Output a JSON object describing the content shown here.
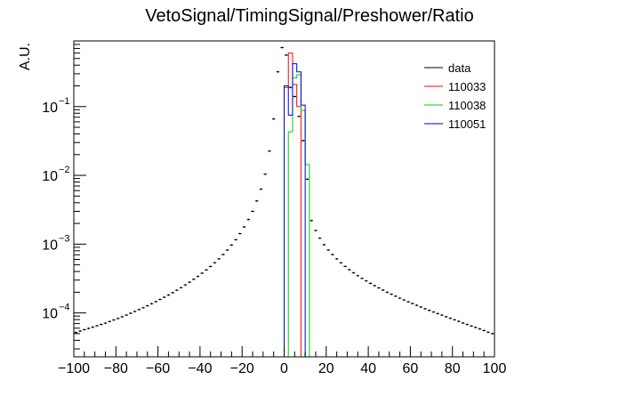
{
  "chart_data": {
    "type": "histogram",
    "title": "VetoSignal/TimingSignal/Preshower/Ratio",
    "xlabel": "",
    "ylabel": "A.U.",
    "xlim": [
      -100,
      100
    ],
    "ylim": [
      2.3e-05,
      0.9
    ],
    "yscale": "log",
    "bin_width": 2,
    "x_ticks": [
      -100,
      -80,
      -60,
      -40,
      -20,
      0,
      20,
      40,
      60,
      80,
      100
    ],
    "x_tick_labels": [
      "−100",
      "−80",
      "−60",
      "−40",
      "−20",
      "0",
      "20",
      "40",
      "60",
      "80",
      "100"
    ],
    "y_ticks": [
      0.0001,
      0.001,
      0.01,
      0.1
    ],
    "y_tick_labels": [
      {
        "base": "10",
        "exp": "−4"
      },
      {
        "base": "10",
        "exp": "−3"
      },
      {
        "base": "10",
        "exp": "−2"
      },
      {
        "base": "10",
        "exp": "−1"
      }
    ],
    "grid": false,
    "legend_position": "top-right",
    "series": [
      {
        "name": "data",
        "style": "markers-with-error",
        "color": "#000000",
        "bin_centers": [
          -99,
          -97,
          -95,
          -93,
          -91,
          -89,
          -87,
          -85,
          -83,
          -81,
          -79,
          -77,
          -75,
          -73,
          -71,
          -69,
          -67,
          -65,
          -63,
          -61,
          -59,
          -57,
          -55,
          -53,
          -51,
          -49,
          -47,
          -45,
          -43,
          -41,
          -39,
          -37,
          -35,
          -33,
          -31,
          -29,
          -27,
          -25,
          -23,
          -21,
          -19,
          -17,
          -15,
          -13,
          -11,
          -9,
          -7,
          -5,
          -3,
          -1,
          1,
          3,
          5,
          7,
          9,
          11,
          13,
          15,
          17,
          19,
          21,
          23,
          25,
          27,
          29,
          31,
          33,
          35,
          37,
          39,
          41,
          43,
          45,
          47,
          49,
          51,
          53,
          55,
          57,
          59,
          61,
          63,
          65,
          67,
          69,
          71,
          73,
          75,
          77,
          79,
          81,
          83,
          85,
          87,
          89,
          91,
          93,
          95,
          97,
          99
        ],
        "values": [
          5.2e-05,
          5.45e-05,
          5.7e-05,
          5.95e-05,
          6.2e-05,
          6.5e-05,
          6.8e-05,
          7.1e-05,
          7.5e-05,
          7.9e-05,
          8.3e-05,
          8.8e-05,
          9.3e-05,
          9.9e-05,
          0.000105,
          0.000112,
          0.000119,
          0.000127,
          0.000136,
          0.000146,
          0.000157,
          0.000169,
          0.000182,
          0.000197,
          0.000214,
          0.000233,
          0.000255,
          0.00028,
          0.000308,
          0.00034,
          0.000378,
          0.000422,
          0.000474,
          0.000536,
          0.000612,
          0.000705,
          0.00082,
          0.00097,
          0.00116,
          0.00142,
          0.00178,
          0.00228,
          0.003,
          0.00425,
          0.0063,
          0.0104,
          0.0225,
          0.066,
          0.32,
          0.72,
          0.56,
          0.19,
          0.14,
          0.072,
          0.032,
          0.0088,
          0.0022,
          0.00158,
          0.00122,
          0.00098,
          0.00082,
          0.000705,
          0.00061,
          0.000535,
          0.000475,
          0.000425,
          0.000383,
          0.000348,
          0.000318,
          0.000292,
          0.000269,
          0.000249,
          0.000231,
          0.000215,
          0.0002,
          0.000187,
          0.000175,
          0.000164,
          0.000154,
          0.000145,
          0.000137,
          0.000129,
          0.000122,
          0.000115,
          0.000109,
          0.000103,
          9.8e-05,
          9.3e-05,
          8.8e-05,
          8.35e-05,
          7.95e-05,
          7.55e-05,
          7.15e-05,
          6.8e-05,
          6.45e-05,
          6.15e-05,
          5.85e-05,
          5.55e-05,
          5.25e-05,
          5e-05
        ]
      },
      {
        "name": "110033",
        "style": "step",
        "color": "#ff0000",
        "bin_edges": [
          0,
          2,
          4,
          6,
          8
        ],
        "values": [
          0.19,
          0.6,
          0.21,
          0.1
        ]
      },
      {
        "name": "110038",
        "style": "step",
        "color": "#00d000",
        "bin_edges": [
          2,
          4,
          6,
          8,
          10,
          12
        ],
        "values": [
          0.043,
          0.26,
          0.29,
          0.088,
          0.0144
        ]
      },
      {
        "name": "110051",
        "style": "step",
        "color": "#0000d0",
        "bin_edges": [
          0,
          2,
          4,
          6,
          8,
          10
        ],
        "values": [
          0.2,
          0.075,
          0.42,
          0.32,
          0.105
        ]
      }
    ]
  }
}
